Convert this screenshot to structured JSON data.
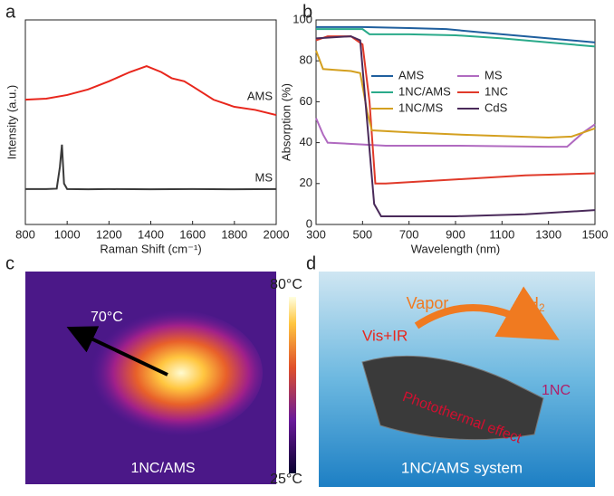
{
  "chart_data": [
    {
      "type": "line",
      "panel": "a",
      "x_label": "Raman Shift (cm⁻¹)",
      "y_label": "Intensity (a.u.)",
      "xlim": [
        800,
        2000
      ],
      "xticks": [
        800,
        1000,
        1200,
        1400,
        1600,
        1800,
        2000
      ],
      "ylim": [
        0,
        10
      ],
      "series": [
        {
          "name": "AMS",
          "color": "#e8261c",
          "x": [
            800,
            900,
            1000,
            1100,
            1200,
            1300,
            1380,
            1450,
            1500,
            1560,
            1600,
            1700,
            1800,
            1900,
            2000
          ],
          "values": [
            6.1,
            6.15,
            6.33,
            6.6,
            7.0,
            7.45,
            7.74,
            7.45,
            7.15,
            7.0,
            6.75,
            6.1,
            5.75,
            5.6,
            5.35
          ]
        },
        {
          "name": "MS",
          "color": "#3a3a3a",
          "x": [
            800,
            900,
            950,
            965,
            975,
            985,
            1000,
            1100,
            1200,
            1400,
            1600,
            1800,
            2000
          ],
          "values": [
            1.73,
            1.73,
            1.75,
            2.8,
            3.9,
            2.0,
            1.73,
            1.72,
            1.73,
            1.72,
            1.73,
            1.72,
            1.73
          ]
        }
      ]
    },
    {
      "type": "line",
      "panel": "b",
      "x_label": "Wavelength (nm)",
      "y_label": "Absorption (%)",
      "xlim": [
        300,
        1500
      ],
      "xticks": [
        300,
        500,
        700,
        900,
        1100,
        1300,
        1500
      ],
      "ylim": [
        0,
        100
      ],
      "yticks": [
        0,
        20,
        40,
        60,
        80,
        100
      ],
      "series": [
        {
          "name": "AMS",
          "color": "#1f5f9e",
          "x": [
            300,
            500,
            700,
            860,
            1100,
            1300,
            1500
          ],
          "values": [
            96.5,
            96.5,
            96,
            95.5,
            93,
            91,
            89
          ]
        },
        {
          "name": "MS",
          "color": "#b06ac0",
          "x": [
            300,
            330,
            350,
            600,
            900,
            1300,
            1380,
            1450,
            1500
          ],
          "values": [
            52,
            44,
            40,
            38.5,
            38.5,
            38,
            38,
            45,
            49
          ]
        },
        {
          "name": "1NC/AMS",
          "color": "#2aaa8a",
          "x": [
            300,
            500,
            530,
            700,
            900,
            1100,
            1300,
            1500
          ],
          "values": [
            95.5,
            95.5,
            93,
            93,
            92.5,
            91,
            89,
            87
          ]
        },
        {
          "name": "1NC",
          "color": "#e03a2a",
          "x": [
            300,
            350,
            450,
            500,
            530,
            555,
            600,
            900,
            1200,
            1500
          ],
          "values": [
            90,
            92,
            92,
            88,
            60,
            20,
            20,
            22,
            24,
            25
          ]
        },
        {
          "name": "1NC/MS",
          "color": "#d4a020",
          "x": [
            300,
            330,
            450,
            490,
            520,
            540,
            700,
            900,
            1300,
            1400,
            1500
          ],
          "values": [
            85,
            76,
            75,
            74,
            55,
            46,
            45,
            44,
            42.5,
            43,
            47
          ]
        },
        {
          "name": "CdS",
          "color": "#4a2a5a",
          "x": [
            300,
            450,
            490,
            520,
            550,
            580,
            900,
            1200,
            1500
          ],
          "values": [
            91,
            92,
            90,
            50,
            10,
            4,
            4,
            5,
            7
          ]
        }
      ]
    }
  ],
  "panel_c": {
    "label": "c",
    "max": "80°C",
    "min": "25°C",
    "spot": "70°C",
    "sample": "1NC/AMS"
  },
  "panel_d": {
    "label": "d",
    "vapor": "Vapor",
    "h": "H",
    "h_sub": "2",
    "light": "Vis+IR",
    "catalyst": "1NC",
    "effect": "Photothermal effect",
    "system": "1NC/AMS system"
  },
  "panel_labels": [
    "a",
    "b"
  ]
}
